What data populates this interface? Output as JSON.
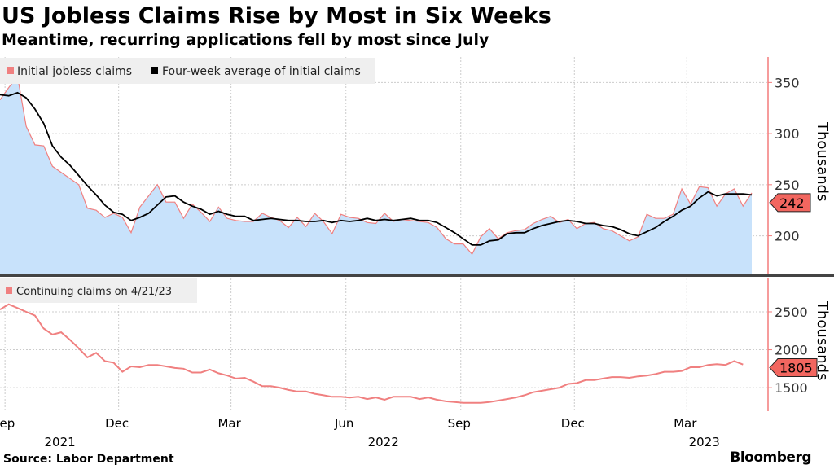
{
  "title": "US Jobless Claims Rise by Most in Six Weeks",
  "subtitle": "Meantime, recurring applications fell by most since July",
  "source": "Source: Labor Department",
  "brand": "Bloomberg",
  "colors": {
    "initial": "#f08080",
    "average": "#000000",
    "area": "#c8e2fb",
    "axis": "#f47c7c",
    "label_bg": "#f2665f",
    "legend_bg": "#efefef",
    "divider": "#444444"
  },
  "chart_data": [
    {
      "type": "area+line",
      "panel": "top",
      "legend": [
        "Initial jobless claims",
        "Four-week average of initial claims"
      ],
      "ylabel": "Thousands",
      "yticks": [
        200,
        250,
        300,
        350
      ],
      "ylim": [
        163,
        375
      ],
      "grid": true,
      "last_value_label": "242",
      "x": [
        "2021-08-28",
        "2021-09-04",
        "2021-09-11",
        "2021-09-18",
        "2021-09-25",
        "2021-10-02",
        "2021-10-09",
        "2021-10-16",
        "2021-10-23",
        "2021-10-30",
        "2021-11-06",
        "2021-11-13",
        "2021-11-20",
        "2021-11-27",
        "2021-12-04",
        "2021-12-11",
        "2021-12-18",
        "2021-12-25",
        "2022-01-01",
        "2022-01-08",
        "2022-01-15",
        "2022-01-22",
        "2022-01-29",
        "2022-02-05",
        "2022-02-12",
        "2022-02-19",
        "2022-02-26",
        "2022-03-05",
        "2022-03-12",
        "2022-03-19",
        "2022-03-26",
        "2022-04-02",
        "2022-04-09",
        "2022-04-16",
        "2022-04-23",
        "2022-04-30",
        "2022-05-07",
        "2022-05-14",
        "2022-05-21",
        "2022-05-28",
        "2022-06-04",
        "2022-06-11",
        "2022-06-18",
        "2022-06-25",
        "2022-07-02",
        "2022-07-09",
        "2022-07-16",
        "2022-07-23",
        "2022-07-30",
        "2022-08-06",
        "2022-08-13",
        "2022-08-20",
        "2022-08-27",
        "2022-09-03",
        "2022-09-10",
        "2022-09-17",
        "2022-09-24",
        "2022-10-01",
        "2022-10-08",
        "2022-10-15",
        "2022-10-22",
        "2022-10-29",
        "2022-11-05",
        "2022-11-12",
        "2022-11-19",
        "2022-11-26",
        "2022-12-03",
        "2022-12-10",
        "2022-12-17",
        "2022-12-24",
        "2022-12-31",
        "2023-01-07",
        "2023-01-14",
        "2023-01-21",
        "2023-01-28",
        "2023-02-04",
        "2023-02-11",
        "2023-02-18",
        "2023-02-25",
        "2023-03-04",
        "2023-03-11",
        "2023-03-18",
        "2023-03-25",
        "2023-04-01",
        "2023-04-08",
        "2023-04-15",
        "2023-04-22"
      ],
      "series": [
        {
          "name": "Initial jobless claims",
          "values": [
            333,
            345,
            356,
            307,
            289,
            288,
            268,
            262,
            256,
            250,
            227,
            225,
            218,
            222,
            218,
            203,
            228,
            239,
            250,
            233,
            233,
            217,
            231,
            223,
            214,
            228,
            217,
            215,
            214,
            214,
            222,
            218,
            215,
            208,
            218,
            209,
            222,
            214,
            202,
            221,
            218,
            217,
            213,
            212,
            222,
            214,
            216,
            215,
            214,
            213,
            208,
            197,
            192,
            192,
            182,
            199,
            207,
            197,
            203,
            205,
            206,
            212,
            216,
            219,
            213,
            216,
            207,
            212,
            213,
            207,
            205,
            200,
            195,
            199,
            221,
            217,
            217,
            221,
            246,
            231,
            248,
            247,
            229,
            241,
            246,
            229,
            242
          ]
        },
        {
          "name": "Four-week average of initial claims",
          "values": [
            338,
            337,
            340,
            335,
            324,
            310,
            288,
            277,
            269,
            259,
            249,
            240,
            230,
            223,
            221,
            215,
            218,
            222,
            230,
            238,
            239,
            233,
            229,
            226,
            221,
            224,
            221,
            219,
            219,
            215,
            216,
            217,
            216,
            215,
            215,
            214,
            214,
            215,
            213,
            215,
            214,
            215,
            217,
            215,
            216,
            215,
            216,
            217,
            215,
            215,
            213,
            208,
            203,
            197,
            191,
            191,
            195,
            196,
            202,
            203,
            203,
            207,
            210,
            212,
            214,
            215,
            214,
            212,
            212,
            210,
            209,
            206,
            202,
            200,
            204,
            208,
            214,
            219,
            225,
            229,
            237,
            243,
            239,
            241,
            241,
            241,
            240
          ]
        }
      ]
    },
    {
      "type": "line",
      "panel": "bottom",
      "legend": [
        "Continuing claims on 4/21/23"
      ],
      "ylabel": "Thousands",
      "yticks": [
        1500,
        2000,
        2500
      ],
      "ylim": [
        1190,
        2940
      ],
      "grid": true,
      "last_value_label": "1805",
      "series": [
        {
          "name": "Continuing claims on 4/21/23",
          "values": [
            2530,
            2600,
            2550,
            2500,
            2450,
            2280,
            2200,
            2230,
            2130,
            2020,
            1900,
            1960,
            1850,
            1830,
            1710,
            1780,
            1770,
            1800,
            1800,
            1780,
            1760,
            1750,
            1700,
            1700,
            1740,
            1690,
            1660,
            1620,
            1630,
            1580,
            1520,
            1520,
            1500,
            1470,
            1450,
            1450,
            1420,
            1400,
            1380,
            1380,
            1370,
            1380,
            1350,
            1370,
            1340,
            1380,
            1380,
            1380,
            1350,
            1370,
            1340,
            1320,
            1310,
            1300,
            1300,
            1300,
            1310,
            1330,
            1350,
            1370,
            1400,
            1440,
            1460,
            1480,
            1500,
            1550,
            1560,
            1600,
            1600,
            1620,
            1640,
            1640,
            1630,
            1650,
            1660,
            1680,
            1710,
            1710,
            1720,
            1770,
            1770,
            1800,
            1810,
            1800,
            1850,
            1805
          ]
        }
      ]
    }
  ],
  "xaxis": {
    "ticks": [
      {
        "date": "2021-09-01",
        "label": "Sep"
      },
      {
        "date": "2021-12-01",
        "label": "Dec"
      },
      {
        "date": "2022-03-01",
        "label": "Mar"
      },
      {
        "date": "2022-06-01",
        "label": "Jun"
      },
      {
        "date": "2022-09-01",
        "label": "Sep"
      },
      {
        "date": "2022-12-01",
        "label": "Dec"
      },
      {
        "date": "2023-03-01",
        "label": "Mar"
      }
    ],
    "years": [
      {
        "date": "2021-10-15",
        "label": "2021"
      },
      {
        "date": "2022-07-01",
        "label": "2022"
      },
      {
        "date": "2023-03-15",
        "label": "2023"
      }
    ]
  }
}
